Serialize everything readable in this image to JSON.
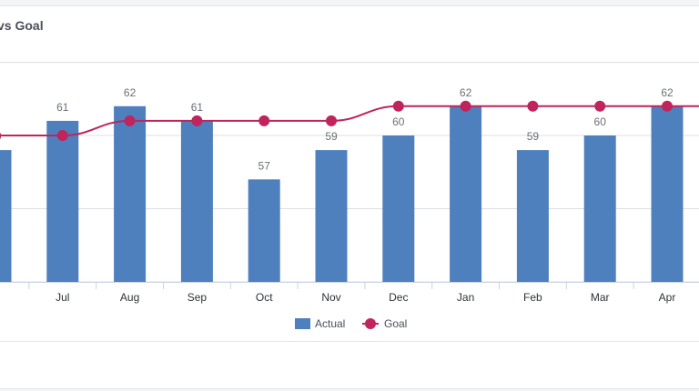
{
  "chart_data": {
    "type": "bar",
    "title": "vs Goal",
    "categories": [
      "n",
      "Jul",
      "Aug",
      "Sep",
      "Oct",
      "Nov",
      "Dec",
      "Jan",
      "Feb",
      "Mar",
      "Apr"
    ],
    "series": [
      {
        "name": "Actual",
        "type": "bar",
        "color": "#4e80be",
        "values": [
          59,
          61,
          62,
          61,
          57,
          59,
          60,
          62,
          59,
          60,
          62
        ]
      },
      {
        "name": "Goal",
        "type": "line",
        "color": "#c0245c",
        "values": [
          60,
          60,
          61,
          61,
          61,
          61,
          62,
          62,
          62,
          62,
          62
        ]
      }
    ],
    "ylim": [
      50,
      65
    ],
    "grid": true,
    "legend": "bottom-center"
  }
}
